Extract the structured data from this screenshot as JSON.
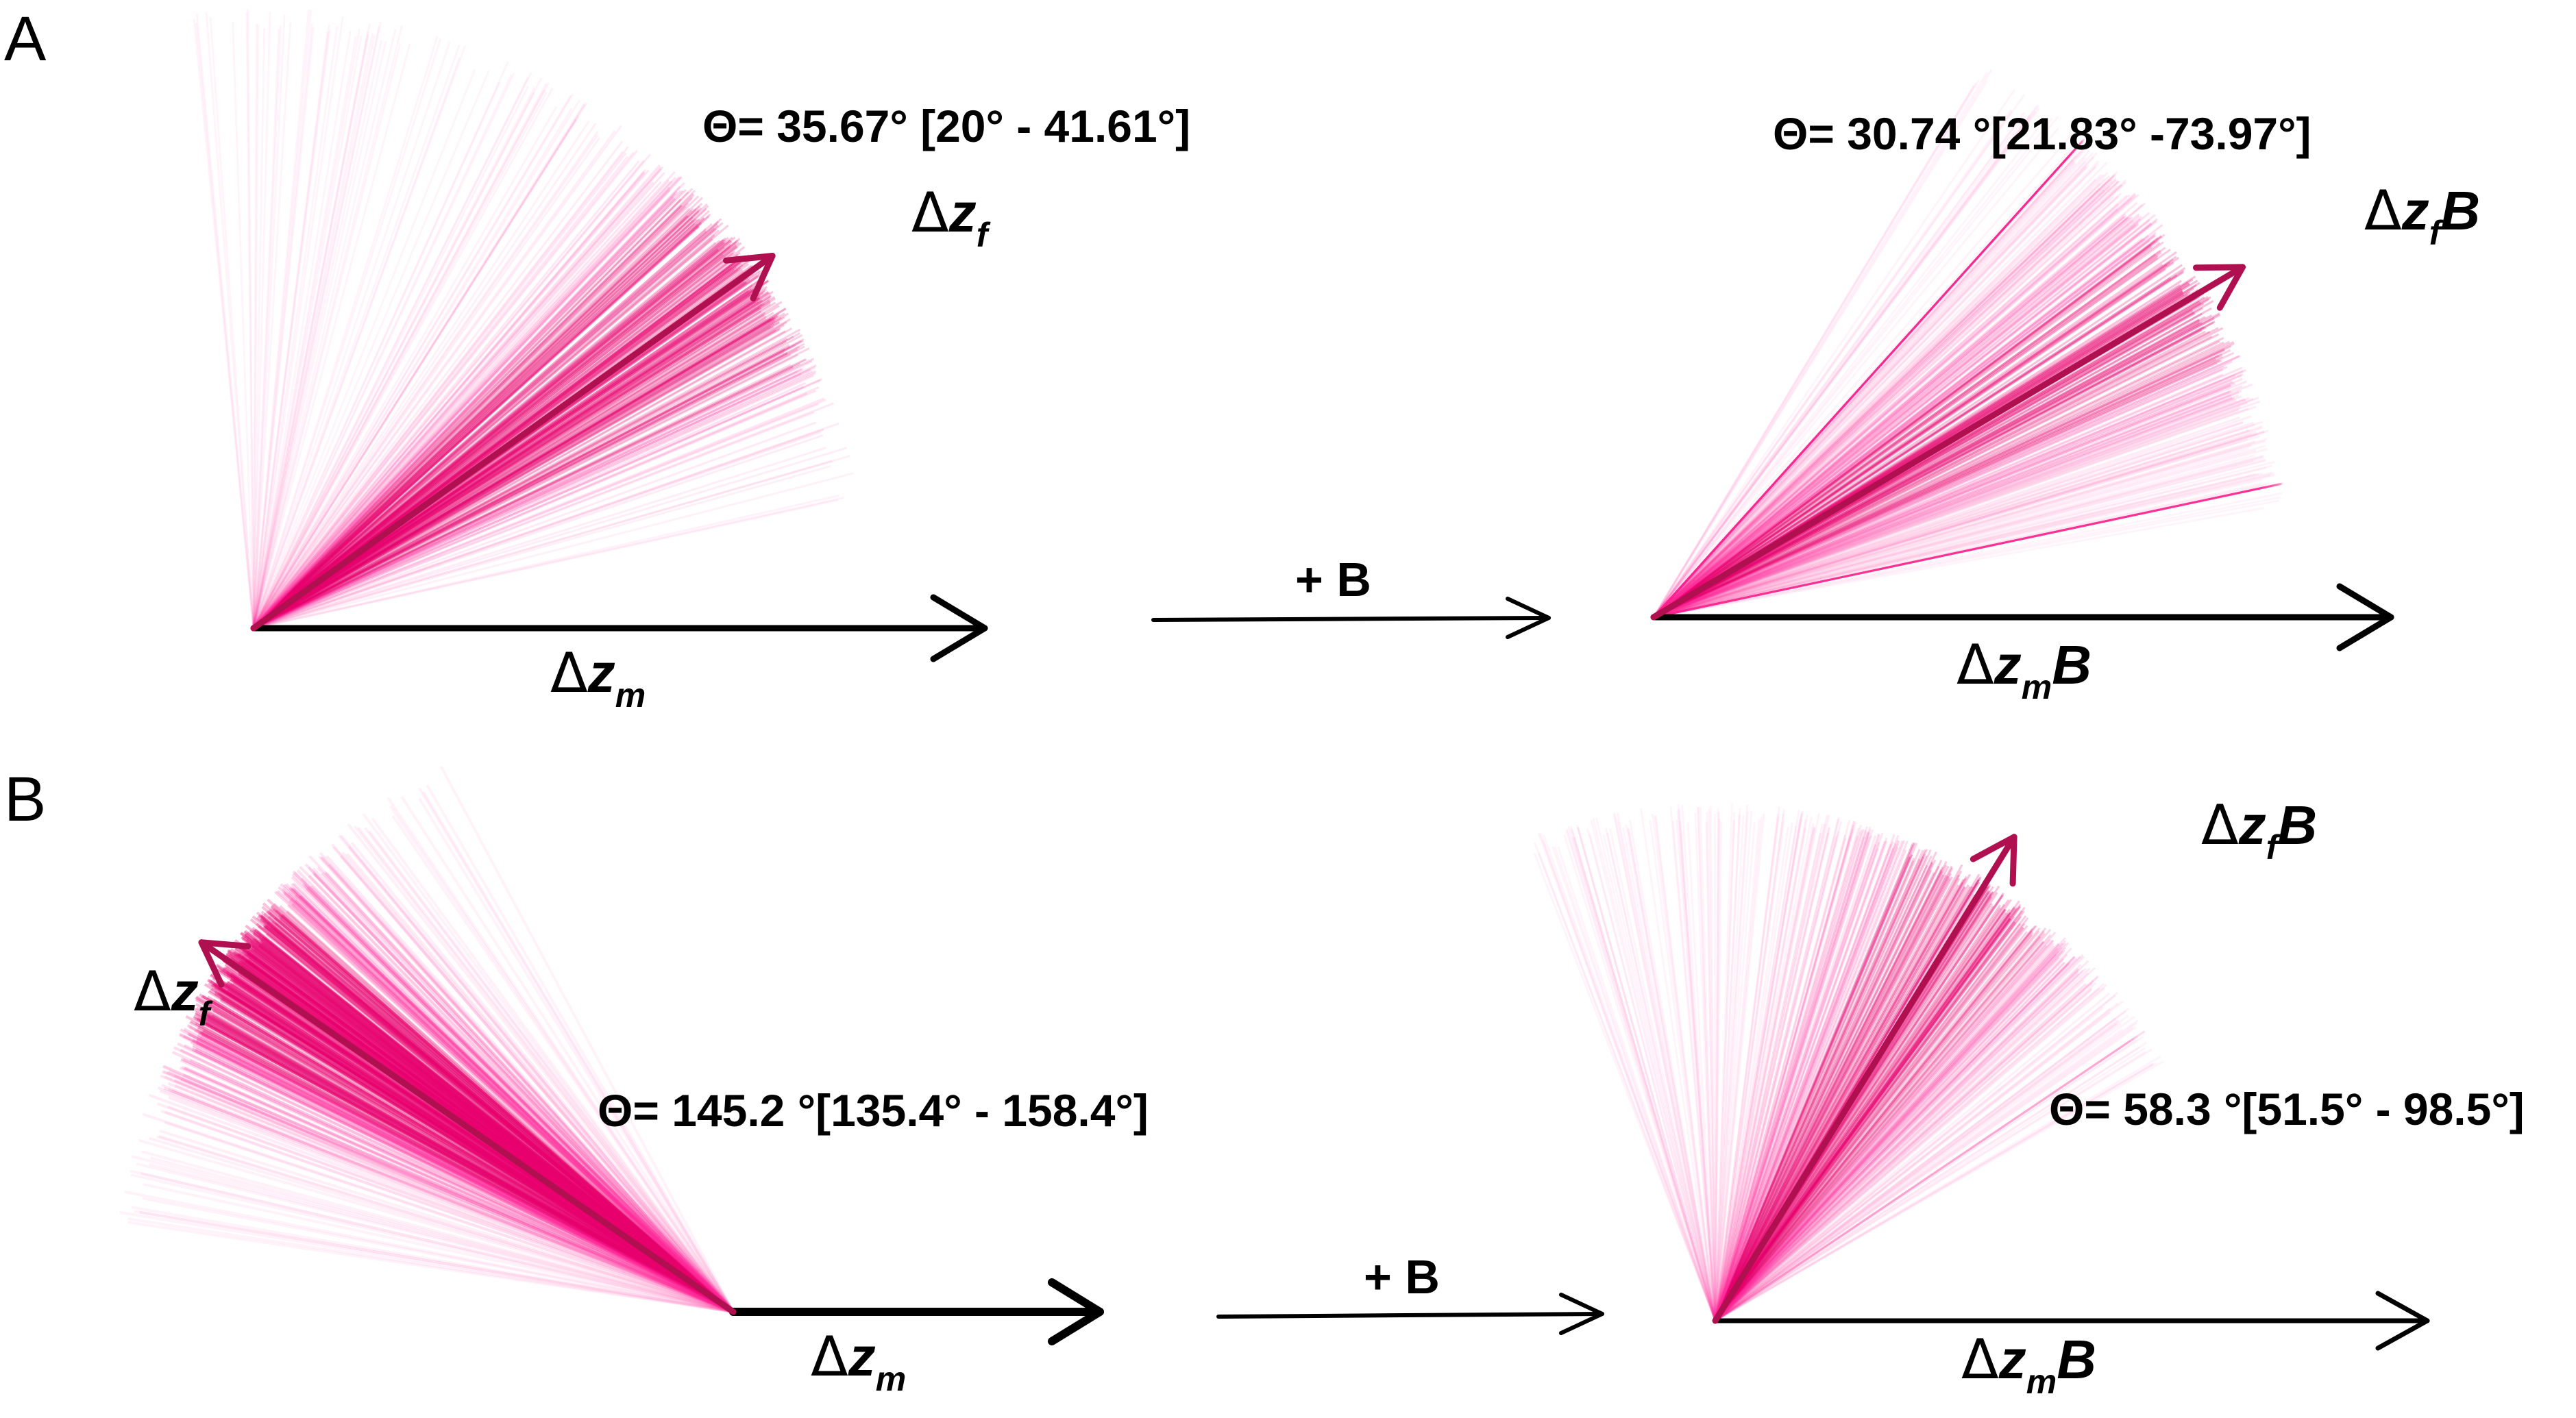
{
  "panels": {
    "A": {
      "label": "A",
      "plus_label": "+ B",
      "left": {
        "theta_text": "Θ= 35.67° [20° - 41.61°]",
        "angle_deg": 35.67,
        "spread_deg": [
          20,
          41.61
        ],
        "fm_label": [
          "Δ",
          "z",
          "m",
          ""
        ],
        "ff_label": [
          "Δ",
          "z",
          "f",
          ""
        ]
      },
      "right": {
        "theta_text": "Θ= 30.74 °[21.83° -73.97°]",
        "angle_deg": 30.74,
        "spread_deg": [
          21.83,
          73.97
        ],
        "fm_label": [
          "Δ",
          "z",
          "m",
          "B"
        ],
        "ff_label": [
          "Δ",
          "z",
          "f",
          "B"
        ]
      }
    },
    "B": {
      "label": "B",
      "plus_label": "+ B",
      "left": {
        "theta_text": "Θ= 145.2 °[135.4° - 158.4°]",
        "angle_deg": 145.2,
        "spread_deg": [
          135.4,
          158.4
        ],
        "fm_label": [
          "Δ",
          "z",
          "m",
          ""
        ],
        "ff_label": [
          "Δ",
          "z",
          "f",
          ""
        ]
      },
      "right": {
        "theta_text": "Θ= 58.3 °[51.5° - 98.5°]",
        "angle_deg": 58.3,
        "spread_deg": [
          51.5,
          98.5
        ],
        "fm_label": [
          "Δ",
          "z",
          "m",
          "B"
        ],
        "ff_label": [
          "Δ",
          "z",
          "f",
          "B"
        ]
      }
    }
  },
  "colors": {
    "fan": "#ff2a9a",
    "fan_dense": "#e8006e",
    "vector": "#b0104f",
    "axis": "#000000"
  }
}
